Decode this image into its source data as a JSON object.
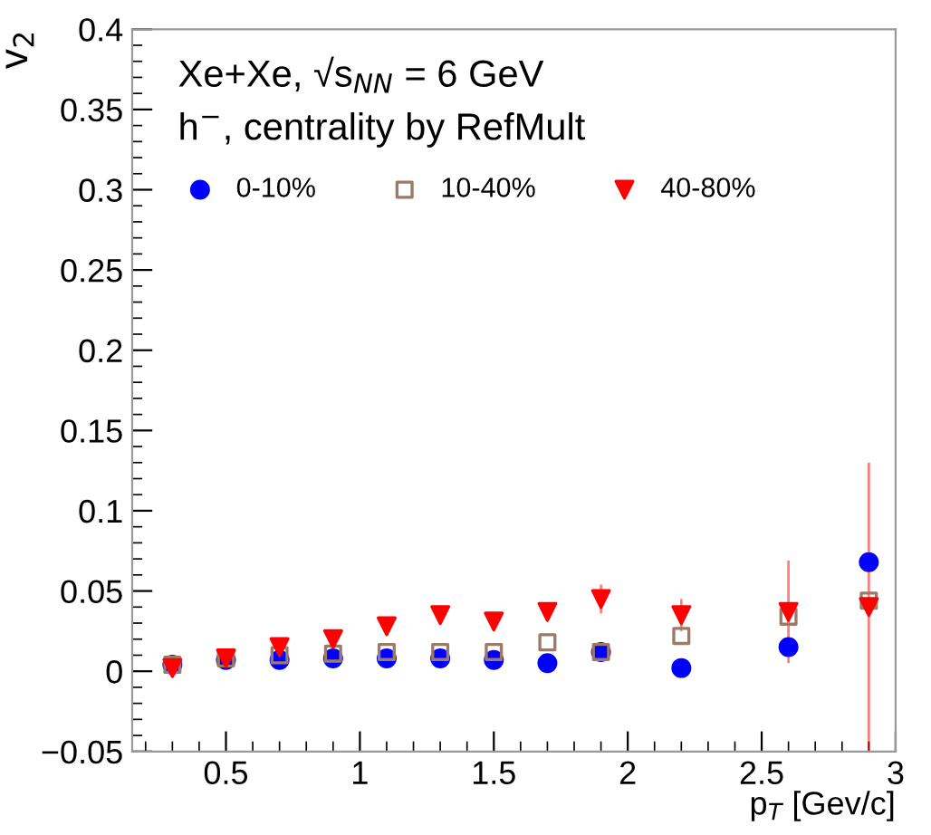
{
  "chart_data": {
    "type": "scatter",
    "xlabel": "p$_{T}$ [Gev/c]",
    "ylabel": "v$_{2}$",
    "annotations": [
      "Xe+Xe, √s$_{NN}$ = 6 GeV",
      "h$^{−}$, centrality by RefMult"
    ],
    "x": [
      0.3,
      0.5,
      0.7,
      0.9,
      1.1,
      1.3,
      1.5,
      1.7,
      1.9,
      2.2,
      2.6,
      2.9
    ],
    "series": [
      {
        "name": "0-10%",
        "color": "#0000ff",
        "marker": "circle",
        "values": [
          0.004,
          0.007,
          0.007,
          0.008,
          0.008,
          0.008,
          0.007,
          0.005,
          0.012,
          0.002,
          0.015,
          0.068
        ]
      },
      {
        "name": "10-40%",
        "color": "#9c7a6a",
        "marker": "square",
        "values": [
          0.004,
          0.008,
          0.01,
          0.011,
          0.012,
          0.012,
          0.012,
          0.018,
          0.012,
          0.022,
          0.034,
          0.044
        ]
      },
      {
        "name": "40-80%",
        "color": "#ff0000",
        "marker": "triangle",
        "values": [
          0.002,
          0.008,
          0.015,
          0.02,
          0.028,
          0.035,
          0.031,
          0.037,
          0.045,
          0.035,
          0.037,
          0.04
        ],
        "errors": [
          null,
          null,
          null,
          null,
          null,
          null,
          null,
          null,
          0.009,
          0.01,
          0.032,
          0.09
        ]
      }
    ],
    "xlim": [
      0.15,
      3
    ],
    "xticks": [
      0.5,
      1,
      1.5,
      2,
      2.5,
      3
    ],
    "ylim": [
      -0.05,
      0.4
    ],
    "yticks": [
      {
        "value": -0.05,
        "label": "−0.05"
      },
      0,
      0.05,
      0.1,
      0.15,
      0.2,
      0.25,
      0.3,
      0.35,
      0.4
    ],
    "grid": false,
    "legend": "top left"
  }
}
